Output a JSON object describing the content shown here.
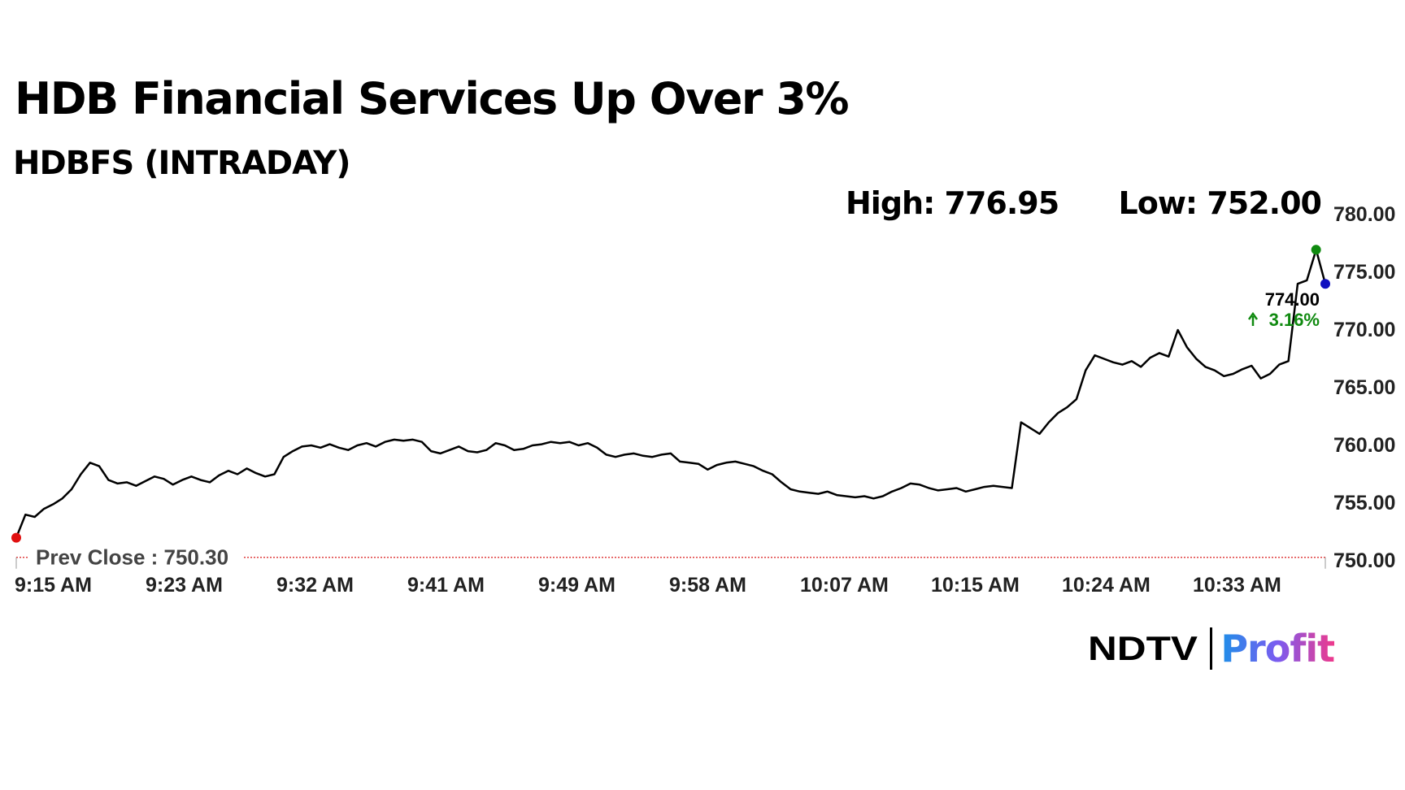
{
  "header": {
    "title": "HDB Financial Services Up Over 3%",
    "subtitle": "HDBFS (INTRADAY)",
    "high_label": "High: 776.95",
    "low_label": "Low: 752.00"
  },
  "logo": {
    "ndtv": "NDTV",
    "profit": "Profit"
  },
  "chart_data": {
    "type": "line",
    "ylim": [
      750,
      780
    ],
    "y_ticks": [
      "780.00",
      "775.00",
      "770.00",
      "765.00",
      "760.00",
      "755.00",
      "750.00"
    ],
    "x_ticks": [
      "9:15 AM",
      "9:23 AM",
      "9:32 AM",
      "9:41 AM",
      "9:49 AM",
      "9:58 AM",
      "10:07 AM",
      "10:15 AM",
      "10:24 AM",
      "10:33 AM"
    ],
    "prev_close": 750.3,
    "prev_close_label": "Prev Close : 750.30",
    "last_value_label": "774.00",
    "change_label": "3.16%",
    "high": 776.95,
    "low": 752.0,
    "colors": {
      "line": "#000000",
      "low_marker": "#e01010",
      "high_marker": "#108a10",
      "last_marker": "#1010c0",
      "change_text": "#108a10",
      "prev_close_line": "#e04040",
      "axis_text": "#222222"
    },
    "series": [
      {
        "values": [
          [
            0,
            752.0
          ],
          [
            1,
            754.0
          ],
          [
            2,
            753.8
          ],
          [
            3,
            754.5
          ],
          [
            4,
            754.9
          ],
          [
            5,
            755.4
          ],
          [
            6,
            756.2
          ],
          [
            7,
            757.5
          ],
          [
            8,
            758.5
          ],
          [
            9,
            758.2
          ],
          [
            10,
            757.0
          ],
          [
            11,
            756.7
          ],
          [
            12,
            756.8
          ],
          [
            13,
            756.5
          ],
          [
            14,
            756.9
          ],
          [
            15,
            757.3
          ],
          [
            16,
            757.1
          ],
          [
            17,
            756.6
          ],
          [
            18,
            757.0
          ],
          [
            19,
            757.3
          ],
          [
            20,
            757.0
          ],
          [
            21,
            756.8
          ],
          [
            22,
            757.4
          ],
          [
            23,
            757.8
          ],
          [
            24,
            757.5
          ],
          [
            25,
            758.0
          ],
          [
            26,
            757.6
          ],
          [
            27,
            757.3
          ],
          [
            28,
            757.5
          ],
          [
            29,
            759.0
          ],
          [
            30,
            759.5
          ],
          [
            31,
            759.9
          ],
          [
            32,
            760.0
          ],
          [
            33,
            759.8
          ],
          [
            34,
            760.1
          ],
          [
            35,
            759.8
          ],
          [
            36,
            759.6
          ],
          [
            37,
            760.0
          ],
          [
            38,
            760.2
          ],
          [
            39,
            759.9
          ],
          [
            40,
            760.3
          ],
          [
            41,
            760.5
          ],
          [
            42,
            760.4
          ],
          [
            43,
            760.5
          ],
          [
            44,
            760.3
          ],
          [
            45,
            759.5
          ],
          [
            46,
            759.3
          ],
          [
            47,
            759.6
          ],
          [
            48,
            759.9
          ],
          [
            49,
            759.5
          ],
          [
            50,
            759.4
          ],
          [
            51,
            759.6
          ],
          [
            52,
            760.2
          ],
          [
            53,
            760.0
          ],
          [
            54,
            759.6
          ],
          [
            55,
            759.7
          ],
          [
            56,
            760.0
          ],
          [
            57,
            760.1
          ],
          [
            58,
            760.3
          ],
          [
            59,
            760.2
          ],
          [
            60,
            760.3
          ],
          [
            61,
            760.0
          ],
          [
            62,
            760.2
          ],
          [
            63,
            759.8
          ],
          [
            64,
            759.2
          ],
          [
            65,
            759.0
          ],
          [
            66,
            759.2
          ],
          [
            67,
            759.3
          ],
          [
            68,
            759.1
          ],
          [
            69,
            759.0
          ],
          [
            70,
            759.2
          ],
          [
            71,
            759.3
          ],
          [
            72,
            758.6
          ],
          [
            73,
            758.5
          ],
          [
            74,
            758.4
          ],
          [
            75,
            757.9
          ],
          [
            76,
            758.3
          ],
          [
            77,
            758.5
          ],
          [
            78,
            758.6
          ],
          [
            79,
            758.4
          ],
          [
            80,
            758.2
          ],
          [
            81,
            757.8
          ],
          [
            82,
            757.5
          ],
          [
            83,
            756.8
          ],
          [
            84,
            756.2
          ],
          [
            85,
            756.0
          ],
          [
            86,
            755.9
          ],
          [
            87,
            755.8
          ],
          [
            88,
            756.0
          ],
          [
            89,
            755.7
          ],
          [
            90,
            755.6
          ],
          [
            91,
            755.5
          ],
          [
            92,
            755.6
          ],
          [
            93,
            755.4
          ],
          [
            94,
            755.6
          ],
          [
            95,
            756.0
          ],
          [
            96,
            756.3
          ],
          [
            97,
            756.7
          ],
          [
            98,
            756.6
          ],
          [
            99,
            756.3
          ],
          [
            100,
            756.1
          ],
          [
            101,
            756.2
          ],
          [
            102,
            756.3
          ],
          [
            103,
            756.0
          ],
          [
            104,
            756.2
          ],
          [
            105,
            756.4
          ],
          [
            106,
            756.5
          ],
          [
            107,
            756.4
          ],
          [
            108,
            756.3
          ],
          [
            109,
            762.0
          ],
          [
            110,
            761.5
          ],
          [
            111,
            761.0
          ],
          [
            112,
            762.0
          ],
          [
            113,
            762.8
          ],
          [
            114,
            763.3
          ],
          [
            115,
            764.0
          ],
          [
            116,
            766.5
          ],
          [
            117,
            767.8
          ],
          [
            118,
            767.5
          ],
          [
            119,
            767.2
          ],
          [
            120,
            767.0
          ],
          [
            121,
            767.3
          ],
          [
            122,
            766.8
          ],
          [
            123,
            767.6
          ],
          [
            124,
            768.0
          ],
          [
            125,
            767.7
          ],
          [
            126,
            770.0
          ],
          [
            127,
            768.5
          ],
          [
            128,
            767.5
          ],
          [
            129,
            766.8
          ],
          [
            130,
            766.5
          ],
          [
            131,
            766.0
          ],
          [
            132,
            766.2
          ],
          [
            133,
            766.6
          ],
          [
            134,
            766.9
          ],
          [
            135,
            765.8
          ],
          [
            136,
            766.2
          ],
          [
            137,
            767.0
          ],
          [
            138,
            767.3
          ],
          [
            139,
            774.0
          ],
          [
            140,
            774.3
          ],
          [
            141,
            776.95
          ],
          [
            142,
            774.0
          ]
        ]
      }
    ]
  }
}
